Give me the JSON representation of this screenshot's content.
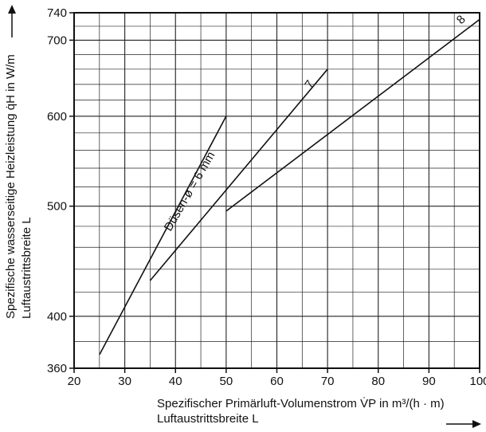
{
  "chart_data": {
    "type": "line",
    "title": "",
    "x_axis": {
      "min": 20,
      "max": 100,
      "ticks": [
        20,
        30,
        40,
        50,
        60,
        70,
        80,
        90,
        100
      ],
      "tick_labels": [
        "20",
        "30",
        "40",
        "50",
        "60",
        "70",
        "80",
        "90",
        "100"
      ],
      "label_line1": "Spezifischer Primärluft-Volumenstrom V̇P in m³/(h · m)",
      "label_line2": "Luftaustrittsbreite L"
    },
    "y_axis": {
      "min": 360,
      "max": 740,
      "scale": "log",
      "ticks": [
        360,
        400,
        500,
        600,
        700,
        740
      ],
      "tick_labels": [
        "360",
        "400",
        "500",
        "600",
        "700",
        "740"
      ],
      "label_line1": "Spezifische wasserseitige Heizleistung q̇H in W/m",
      "label_line2": "Luftaustrittsbreite L"
    },
    "grid": true,
    "series": [
      {
        "name": "Düsen-ø = 6 mm",
        "x": [
          25,
          50
        ],
        "y": [
          370,
          600
        ]
      },
      {
        "name": "7",
        "x": [
          35,
          70
        ],
        "y": [
          430,
          660
        ]
      },
      {
        "name": "8",
        "x": [
          50,
          100
        ],
        "y": [
          495,
          730
        ]
      }
    ],
    "annotations": {
      "nozzle_6": "Düsen-ø = 6 mm",
      "nozzle_7": "7",
      "nozzle_8": "8"
    }
  }
}
